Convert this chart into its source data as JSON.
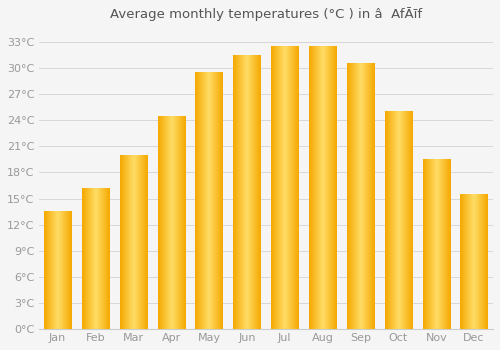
{
  "title": "Average monthly temperatures (°C ) in â  AfĀīf",
  "months": [
    "Jan",
    "Feb",
    "Mar",
    "Apr",
    "May",
    "Jun",
    "Jul",
    "Aug",
    "Sep",
    "Oct",
    "Nov",
    "Dec"
  ],
  "values": [
    13.5,
    16.2,
    20.0,
    24.5,
    29.5,
    31.5,
    32.5,
    32.5,
    30.5,
    25.0,
    19.5,
    15.5
  ],
  "bar_color_left": "#F5A800",
  "bar_color_center": "#FFD966",
  "background_color": "#f5f5f5",
  "grid_color": "#d8d8d8",
  "yticks": [
    0,
    3,
    6,
    9,
    12,
    15,
    18,
    21,
    24,
    27,
    30,
    33
  ],
  "ylim": [
    0,
    34.5
  ],
  "font_color": "#999999",
  "title_color": "#555555",
  "title_fontsize": 9.5,
  "tick_fontsize": 8
}
